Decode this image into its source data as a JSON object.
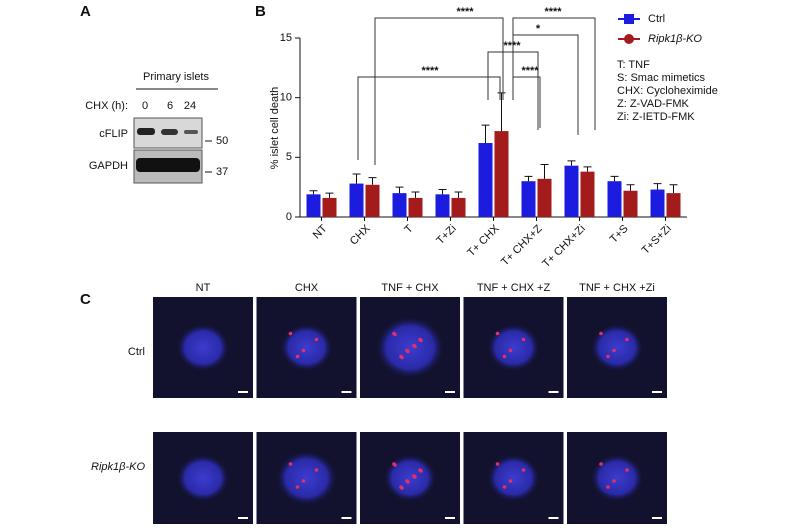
{
  "panel_labels": [
    "A",
    "B",
    "C"
  ],
  "blot": {
    "title": "Primary islets",
    "condition_label": "CHX (h):",
    "timepoints": [
      "0",
      "6",
      "24"
    ],
    "proteins": [
      "cFLIP",
      "GAPDH"
    ],
    "markers": [
      "50",
      "37"
    ]
  },
  "chart_data": {
    "type": "bar",
    "y_label": "% islet cell death",
    "categories": [
      "NT",
      "CHX",
      "T",
      "T+Zi",
      "T+ CHX",
      "T+ CHX+Z",
      "T+ CHX+Zi",
      "T+S",
      "T+S+Zi"
    ],
    "series": [
      {
        "name": "Ctrl",
        "color": "#1c1ce0",
        "values": [
          1.9,
          2.8,
          2.0,
          1.9,
          6.2,
          3.0,
          4.3,
          3.0,
          2.3
        ],
        "errors": [
          0.3,
          0.8,
          0.5,
          0.4,
          1.5,
          0.4,
          0.4,
          0.4,
          0.5
        ]
      },
      {
        "name": "Ripk1β-KO",
        "color": "#a31b1b",
        "values": [
          1.6,
          2.7,
          1.6,
          1.6,
          7.2,
          3.2,
          3.8,
          2.2,
          2.0
        ],
        "errors": [
          0.4,
          0.6,
          0.5,
          0.5,
          3.2,
          1.2,
          0.4,
          0.5,
          0.7
        ]
      }
    ],
    "ylim": [
      0,
      15
    ],
    "yticks": [
      0,
      5,
      10,
      15
    ],
    "annotations": [
      "****",
      "****",
      "*",
      "****",
      "****",
      "****"
    ],
    "legend_notes": [
      "T:  TNF",
      "S:  Smac mimetics",
      "CHX:  Cycloheximide",
      "Z:  Z-VAD-FMK",
      "Zi:  Z-IETD-FMK"
    ]
  },
  "images": {
    "columns": [
      "NT",
      "CHX",
      "TNF + CHX",
      "TNF + CHX +Z",
      "TNF + CHX +Zi"
    ],
    "rows": [
      "Ctrl",
      "Ripk1β-KO"
    ]
  }
}
